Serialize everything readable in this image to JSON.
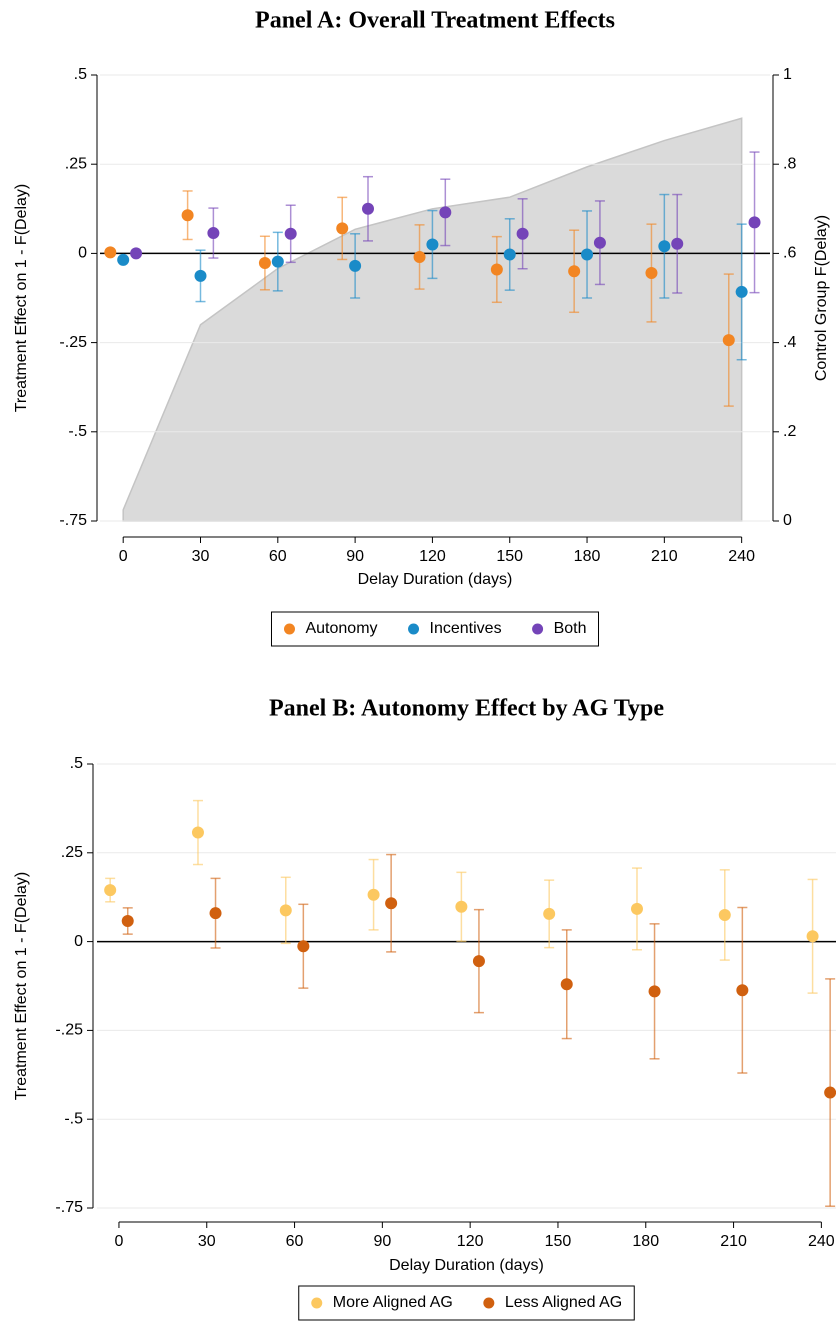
{
  "chart_data": [
    {
      "type": "errorbar",
      "title": "Panel A: Overall Treatment Effects",
      "x_label": "Delay Duration (days)",
      "y_label": "Treatment Effect on 1 - F(Delay)",
      "y2_label": "Control Group F(Delay)",
      "x": [
        0,
        30,
        60,
        90,
        120,
        150,
        180,
        210,
        240
      ],
      "xlim": [
        -9,
        251
      ],
      "xticks": [
        0,
        30,
        60,
        90,
        120,
        150,
        180,
        210,
        240
      ],
      "ylim": [
        -0.75,
        0.5
      ],
      "yticks": [
        {
          "value": 0.5,
          "label": ".5"
        },
        {
          "value": 0.25,
          "label": ".25"
        },
        0,
        {
          "value": -0.25,
          "label": "-.25"
        },
        {
          "value": -0.5,
          "label": "-.5"
        },
        {
          "value": -0.75,
          "label": "-.75"
        }
      ],
      "y2lim": [
        0,
        1
      ],
      "y2ticks": [
        1,
        {
          "value": 0.8,
          "label": ".8"
        },
        {
          "value": 0.6,
          "label": ".6"
        },
        {
          "value": 0.4,
          "label": ".4"
        },
        {
          "value": 0.2,
          "label": ".2"
        },
        0
      ],
      "grid": true,
      "zero_line": true,
      "legend": "bottom",
      "series": [
        {
          "axis": "y2",
          "style": "area",
          "color": "#dadada",
          "values": [
            0.025,
            0.44,
            0.566,
            0.654,
            0.7,
            0.726,
            0.794,
            0.853,
            0.903
          ]
        },
        {
          "name": "Autonomy",
          "color": "#f28522",
          "values": [
            0.003,
            0.107,
            -0.027,
            0.07,
            -0.01,
            -0.045,
            -0.05,
            -0.055,
            -0.243
          ],
          "errors": [
            0,
            0.068,
            0.075,
            0.087,
            0.09,
            0.092,
            0.115,
            0.137,
            0.185
          ]
        },
        {
          "name": "Incentives",
          "color": "#1a8bc8",
          "values": [
            -0.018,
            -0.063,
            -0.023,
            -0.035,
            0.025,
            -0.003,
            -0.003,
            0.02,
            -0.108
          ],
          "errors": [
            0,
            0.072,
            0.082,
            0.09,
            0.095,
            0.1,
            0.122,
            0.145,
            0.19
          ]
        },
        {
          "name": "Both",
          "color": "#7444b8",
          "values": [
            0,
            0.057,
            0.055,
            0.125,
            0.115,
            0.055,
            0.03,
            0.027,
            0.087
          ],
          "errors": [
            0,
            0.07,
            0.08,
            0.09,
            0.093,
            0.098,
            0.117,
            0.138,
            0.197
          ]
        }
      ]
    },
    {
      "type": "errorbar",
      "title": "Panel B: Autonomy Effect by AG Type",
      "x_label": "Delay Duration (days)",
      "y_label": "Treatment Effect on 1 - F(Delay)",
      "x": [
        0,
        30,
        60,
        90,
        120,
        150,
        180,
        210,
        240
      ],
      "xlim": [
        -7.5,
        245
      ],
      "xticks": [
        0,
        30,
        60,
        90,
        120,
        150,
        180,
        210,
        240
      ],
      "ylim": [
        -0.75,
        0.5
      ],
      "yticks": [
        {
          "value": 0.5,
          "label": ".5"
        },
        {
          "value": 0.25,
          "label": ".25"
        },
        0,
        {
          "value": -0.25,
          "label": "-.25"
        },
        {
          "value": -0.5,
          "label": "-.5"
        },
        {
          "value": -0.75,
          "label": "-.75"
        }
      ],
      "grid": true,
      "zero_line": true,
      "legend": "bottom",
      "series": [
        {
          "name": "More Aligned AG",
          "color": "#fcc860",
          "values": [
            0.145,
            0.307,
            0.088,
            0.132,
            0.098,
            0.078,
            0.092,
            0.075,
            0.015
          ],
          "errors": [
            0.033,
            0.09,
            0.093,
            0.099,
            0.097,
            0.095,
            0.115,
            0.127,
            0.16
          ]
        },
        {
          "name": "Less Aligned AG",
          "color": "#d0600f",
          "values": [
            0.058,
            0.08,
            -0.013,
            0.108,
            -0.055,
            -0.12,
            -0.14,
            -0.137,
            -0.425
          ],
          "errors": [
            0.037,
            0.098,
            0.118,
            0.137,
            0.145,
            0.153,
            0.19,
            0.233,
            0.32
          ]
        }
      ]
    }
  ]
}
